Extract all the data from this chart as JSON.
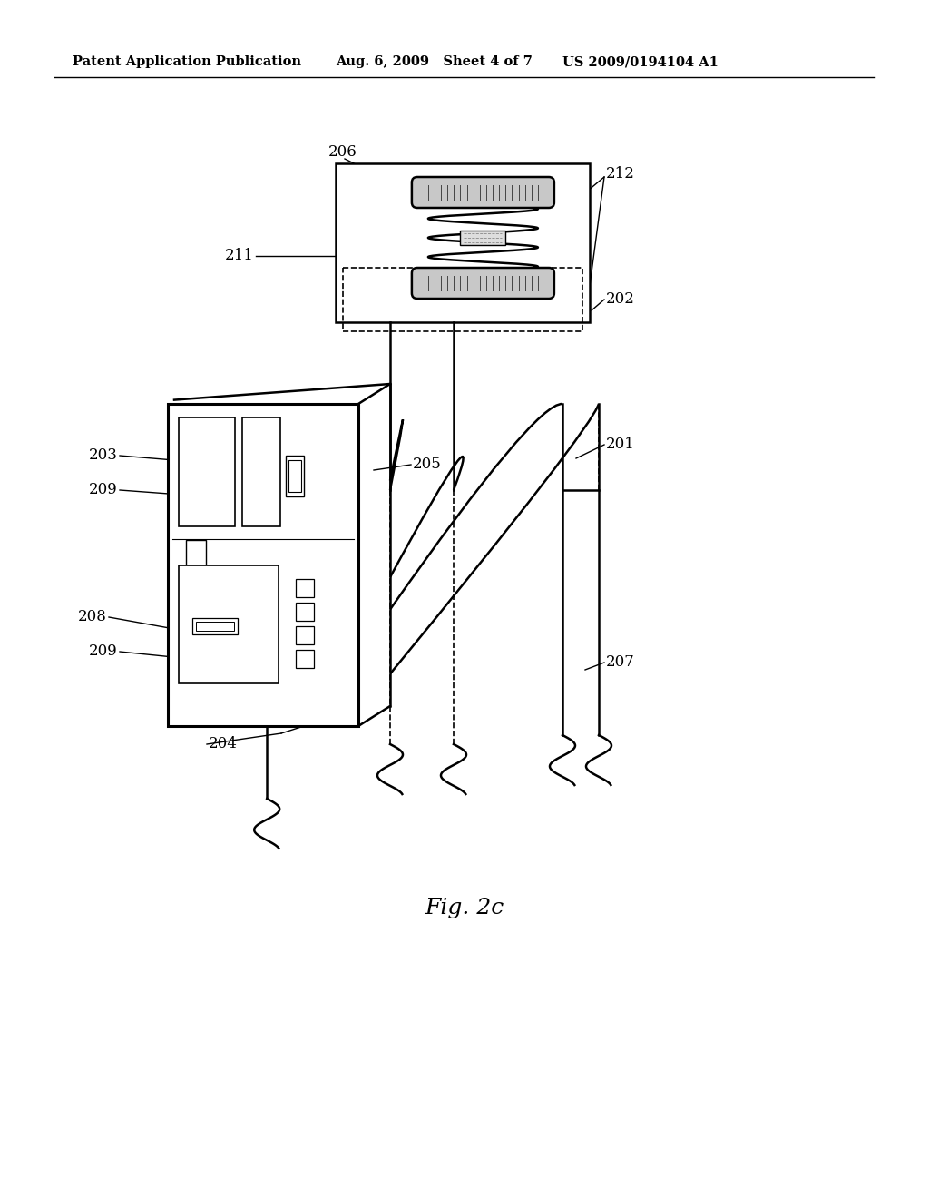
{
  "header_left": "Patent Application Publication",
  "header_mid": "Aug. 6, 2009   Sheet 4 of 7",
  "header_right": "US 2009/0194104 A1",
  "fig_label": "Fig. 2c",
  "bg_color": "#ffffff",
  "line_color": "#000000"
}
